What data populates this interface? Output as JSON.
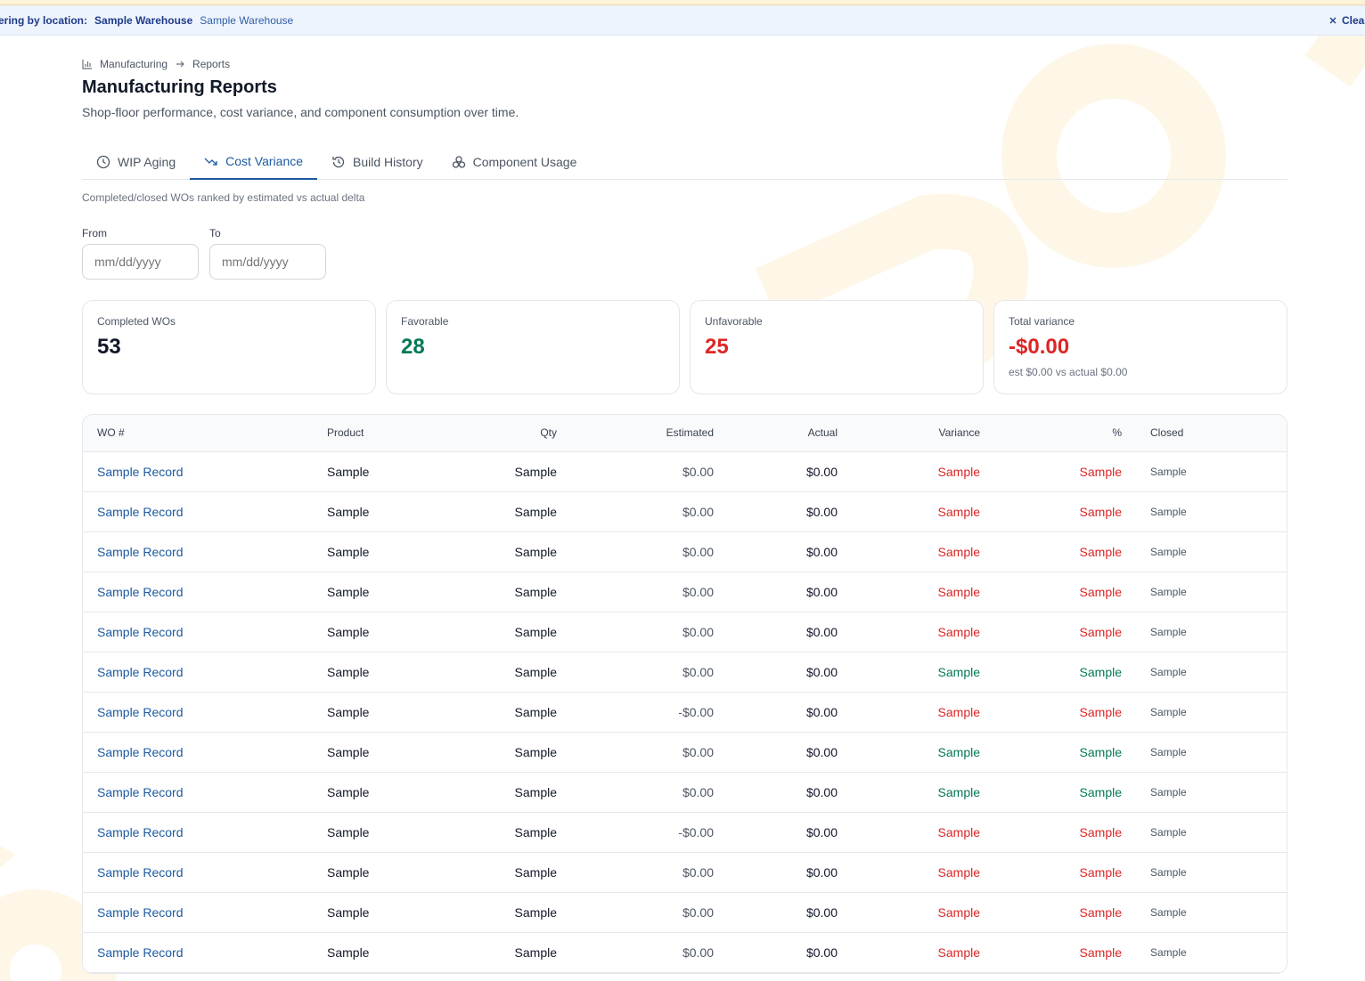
{
  "filter_bar": {
    "label": "tering by location:",
    "location": "Sample Warehouse",
    "location_secondary": "Sample Warehouse",
    "clear_label": "Clear"
  },
  "breadcrumb": {
    "parent": "Manufacturing",
    "current": "Reports"
  },
  "page": {
    "title": "Manufacturing Reports",
    "subtitle": "Shop-floor performance, cost variance, and component consumption over time."
  },
  "tabs": [
    {
      "label": "WIP Aging",
      "icon": "clock-icon",
      "active": false
    },
    {
      "label": "Cost Variance",
      "icon": "trending-down-icon",
      "active": true
    },
    {
      "label": "Build History",
      "icon": "history-icon",
      "active": false
    },
    {
      "label": "Component Usage",
      "icon": "boxes-icon",
      "active": false
    }
  ],
  "tab_description": "Completed/closed WOs ranked by estimated vs actual delta",
  "date_range": {
    "from_label": "From",
    "from_placeholder": "mm/dd/yyyy",
    "to_label": "To",
    "to_placeholder": "mm/dd/yyyy"
  },
  "summary_cards": {
    "completed": {
      "label": "Completed WOs",
      "value": "53"
    },
    "favorable": {
      "label": "Favorable",
      "value": "28"
    },
    "unfavorable": {
      "label": "Unfavorable",
      "value": "25"
    },
    "total_variance": {
      "label": "Total variance",
      "value": "-$0.00",
      "sub": "est $0.00 vs actual $0.00"
    }
  },
  "table": {
    "headers": [
      "WO #",
      "Product",
      "Qty",
      "Estimated",
      "Actual",
      "Variance",
      "%",
      "Closed"
    ],
    "rows": [
      {
        "wo": "Sample Record",
        "product": "Sample",
        "qty": "Sample",
        "estimated": "$0.00",
        "actual": "$0.00",
        "variance": "Sample",
        "pct": "Sample",
        "closed": "Sample",
        "status": "unfavorable"
      },
      {
        "wo": "Sample Record",
        "product": "Sample",
        "qty": "Sample",
        "estimated": "$0.00",
        "actual": "$0.00",
        "variance": "Sample",
        "pct": "Sample",
        "closed": "Sample",
        "status": "unfavorable"
      },
      {
        "wo": "Sample Record",
        "product": "Sample",
        "qty": "Sample",
        "estimated": "$0.00",
        "actual": "$0.00",
        "variance": "Sample",
        "pct": "Sample",
        "closed": "Sample",
        "status": "unfavorable"
      },
      {
        "wo": "Sample Record",
        "product": "Sample",
        "qty": "Sample",
        "estimated": "$0.00",
        "actual": "$0.00",
        "variance": "Sample",
        "pct": "Sample",
        "closed": "Sample",
        "status": "unfavorable"
      },
      {
        "wo": "Sample Record",
        "product": "Sample",
        "qty": "Sample",
        "estimated": "$0.00",
        "actual": "$0.00",
        "variance": "Sample",
        "pct": "Sample",
        "closed": "Sample",
        "status": "unfavorable"
      },
      {
        "wo": "Sample Record",
        "product": "Sample",
        "qty": "Sample",
        "estimated": "$0.00",
        "actual": "$0.00",
        "variance": "Sample",
        "pct": "Sample",
        "closed": "Sample",
        "status": "favorable"
      },
      {
        "wo": "Sample Record",
        "product": "Sample",
        "qty": "Sample",
        "estimated": "-$0.00",
        "actual": "$0.00",
        "variance": "Sample",
        "pct": "Sample",
        "closed": "Sample",
        "status": "unfavorable"
      },
      {
        "wo": "Sample Record",
        "product": "Sample",
        "qty": "Sample",
        "estimated": "$0.00",
        "actual": "$0.00",
        "variance": "Sample",
        "pct": "Sample",
        "closed": "Sample",
        "status": "favorable"
      },
      {
        "wo": "Sample Record",
        "product": "Sample",
        "qty": "Sample",
        "estimated": "$0.00",
        "actual": "$0.00",
        "variance": "Sample",
        "pct": "Sample",
        "closed": "Sample",
        "status": "favorable"
      },
      {
        "wo": "Sample Record",
        "product": "Sample",
        "qty": "Sample",
        "estimated": "-$0.00",
        "actual": "$0.00",
        "variance": "Sample",
        "pct": "Sample",
        "closed": "Sample",
        "status": "unfavorable"
      },
      {
        "wo": "Sample Record",
        "product": "Sample",
        "qty": "Sample",
        "estimated": "$0.00",
        "actual": "$0.00",
        "variance": "Sample",
        "pct": "Sample",
        "closed": "Sample",
        "status": "unfavorable"
      },
      {
        "wo": "Sample Record",
        "product": "Sample",
        "qty": "Sample",
        "estimated": "$0.00",
        "actual": "$0.00",
        "variance": "Sample",
        "pct": "Sample",
        "closed": "Sample",
        "status": "unfavorable"
      },
      {
        "wo": "Sample Record",
        "product": "Sample",
        "qty": "Sample",
        "estimated": "$0.00",
        "actual": "$0.00",
        "variance": "Sample",
        "pct": "Sample",
        "closed": "Sample",
        "status": "unfavorable"
      }
    ]
  },
  "colors": {
    "accent": "#1d5aa0",
    "favorable": "#047857",
    "unfavorable": "#dc2626",
    "filter_bg": "#eef4fc",
    "watermark": "#fef6e4"
  }
}
